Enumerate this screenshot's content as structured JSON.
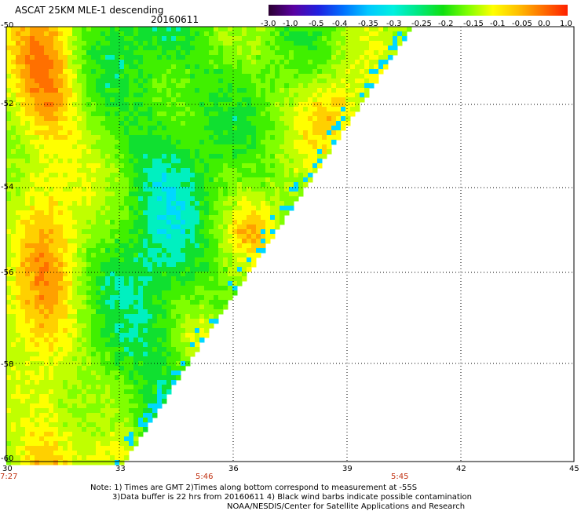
{
  "header": {
    "title": "ASCAT 25KM MLE-1 descending",
    "date": "20160611"
  },
  "colorbar": {
    "tick_labels": [
      "-3.0",
      "-1.0",
      "-0.5",
      "-0.4",
      "-0.35",
      "-0.3",
      "-0.25",
      "-0.2",
      "-0.15",
      "-0.1",
      "-0.05",
      "0.0",
      "1.0"
    ],
    "colors": [
      "#2a0030",
      "#5a00a0",
      "#2020e0",
      "#0070ff",
      "#00c8ff",
      "#00f0e0",
      "#00e880",
      "#10e010",
      "#80ff00",
      "#ffff00",
      "#ffc000",
      "#ff7000",
      "#ff2000"
    ]
  },
  "map": {
    "x_ticks": [
      "30",
      "33",
      "36",
      "39",
      "42",
      "45"
    ],
    "y_ticks": [
      "-50",
      "-52",
      "-54",
      "-56",
      "-58",
      "-60"
    ],
    "time_labels": [
      "7:27",
      "5:46",
      "5:45"
    ]
  },
  "notes": [
    "Note: 1) Times are GMT 2)Times along bottom correspond to measurement at -55S",
    "3)Data buffer is 22 hrs from 20160611 4) Black wind barbs indicate possible contamination",
    "NOAA/NESDIS/Center for Satellite Applications and Research"
  ]
}
